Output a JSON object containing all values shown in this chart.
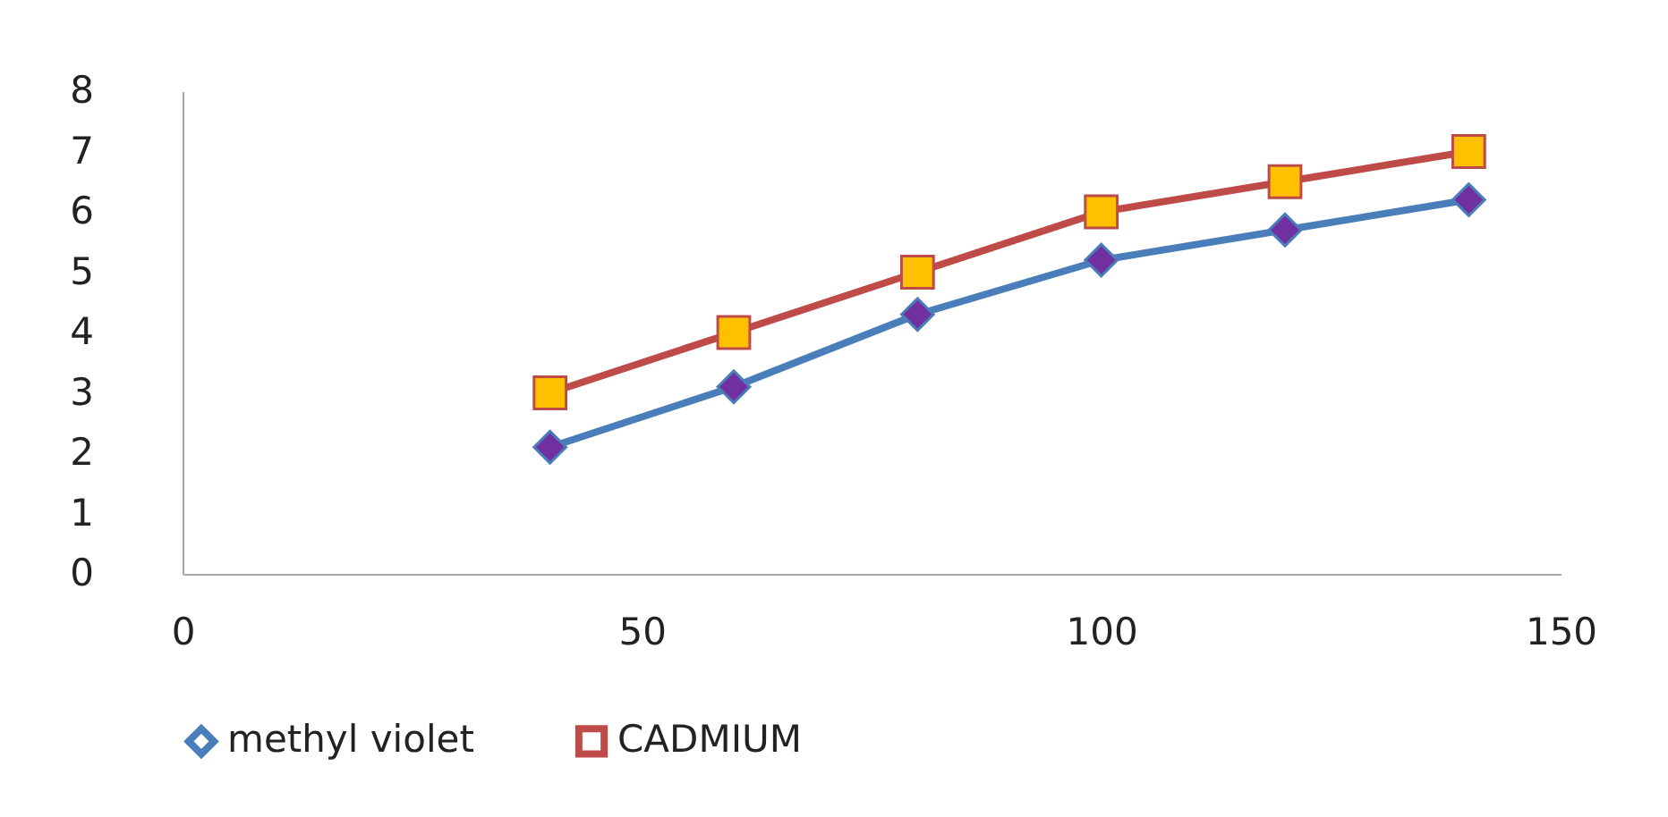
{
  "chart_data": {
    "type": "line",
    "x": [
      40,
      60,
      80,
      100,
      120,
      140
    ],
    "series": [
      {
        "name": "methyl violet",
        "color": "#4a7ebb",
        "marker": "diamond",
        "colors": [
          "#7030a0",
          "#7030a0",
          "#7030a0",
          "#7030a0",
          "#7030a0",
          "#7030a0"
        ],
        "values": [
          2.1,
          3.1,
          4.3,
          5.2,
          5.7,
          6.2
        ]
      },
      {
        "name": "CADMIUM",
        "color": "#be4b48",
        "marker": "square",
        "colors": [
          "#ffc000",
          "#ffc000",
          "#ffc000",
          "#ffc000",
          "#ffc000",
          "#ffc000"
        ],
        "values": [
          3,
          4,
          5,
          6,
          6.5,
          7
        ]
      }
    ],
    "xlim": [
      0,
      150
    ],
    "xticks": [
      0,
      50,
      100,
      150
    ],
    "ylim": [
      0,
      8
    ],
    "yticks": [
      0,
      1,
      2,
      3,
      4,
      5,
      6,
      7,
      8
    ],
    "grid": false,
    "legend": "bottom",
    "line_style": "solid"
  }
}
